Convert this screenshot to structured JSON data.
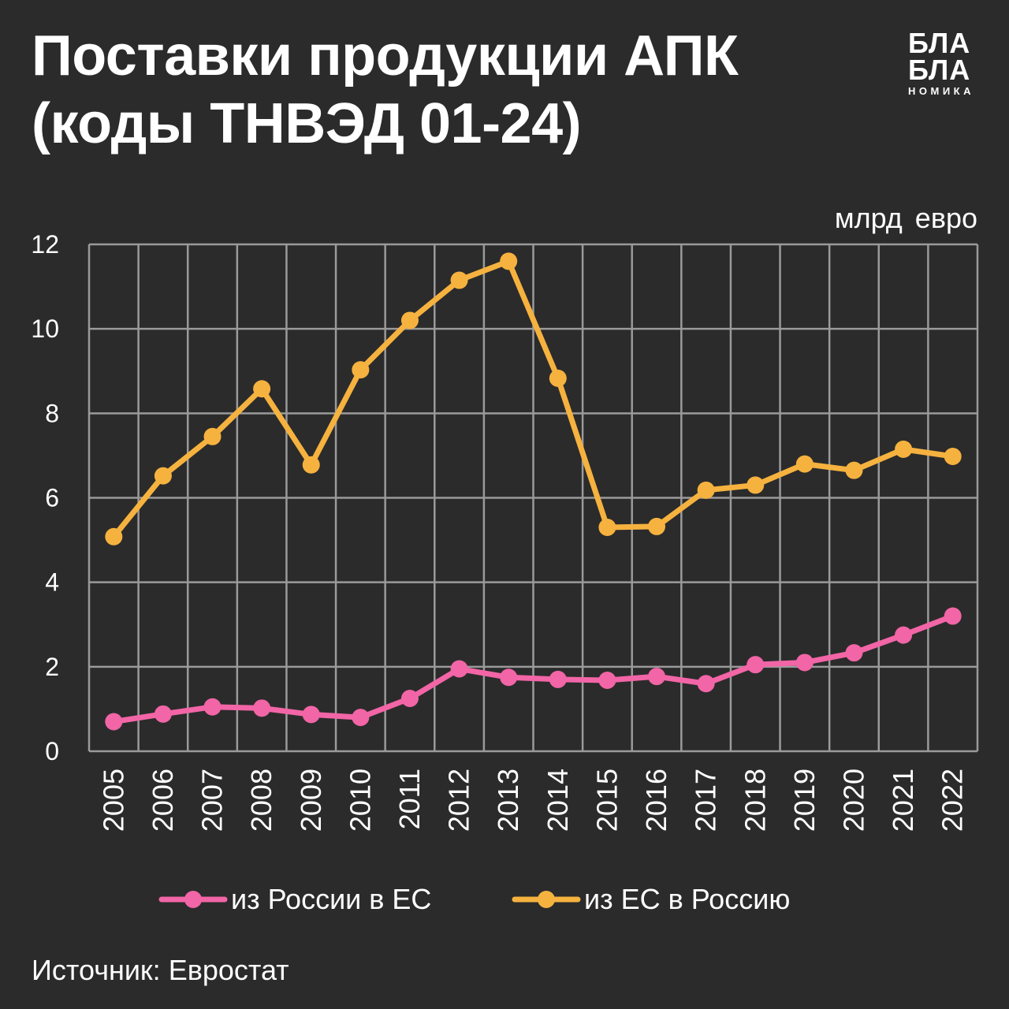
{
  "title": {
    "line1": "Поставки продукции АПК",
    "line2": "(коды ТНВЭД 01-24)"
  },
  "logo": {
    "line1": "БЛА",
    "line2": "БЛА",
    "line3": "НОМИКА"
  },
  "unit_label": "млрд  евро",
  "source": "Источник: Евростат",
  "colors": {
    "background": "#2b2b2b",
    "grid": "#9a9a9a",
    "pink": "#f265a6",
    "orange": "#f6b23f",
    "text": "#ffffff"
  },
  "chart_data": {
    "type": "line",
    "x": [
      "2005",
      "2006",
      "2007",
      "2008",
      "2009",
      "2010",
      "2011",
      "2012",
      "2013",
      "2014",
      "2015",
      "2016",
      "2017",
      "2018",
      "2019",
      "2020",
      "2021",
      "2022"
    ],
    "ylim": [
      0,
      12
    ],
    "yticks": [
      0,
      2,
      4,
      6,
      8,
      10,
      12
    ],
    "grid": true,
    "legend_position": "bottom",
    "series": [
      {
        "name": "из России в ЕС",
        "color": "#f265a6",
        "values": [
          0.7,
          0.88,
          1.05,
          1.02,
          0.87,
          0.8,
          1.25,
          1.95,
          1.75,
          1.7,
          1.68,
          1.77,
          1.6,
          2.05,
          2.1,
          2.33,
          2.75,
          3.2
        ]
      },
      {
        "name": "из ЕС в Россию",
        "color": "#f6b23f",
        "values": [
          5.08,
          6.52,
          7.45,
          8.58,
          6.78,
          9.03,
          10.2,
          11.15,
          11.6,
          8.83,
          5.3,
          5.32,
          6.18,
          6.3,
          6.8,
          6.65,
          7.15,
          6.98
        ]
      }
    ]
  }
}
